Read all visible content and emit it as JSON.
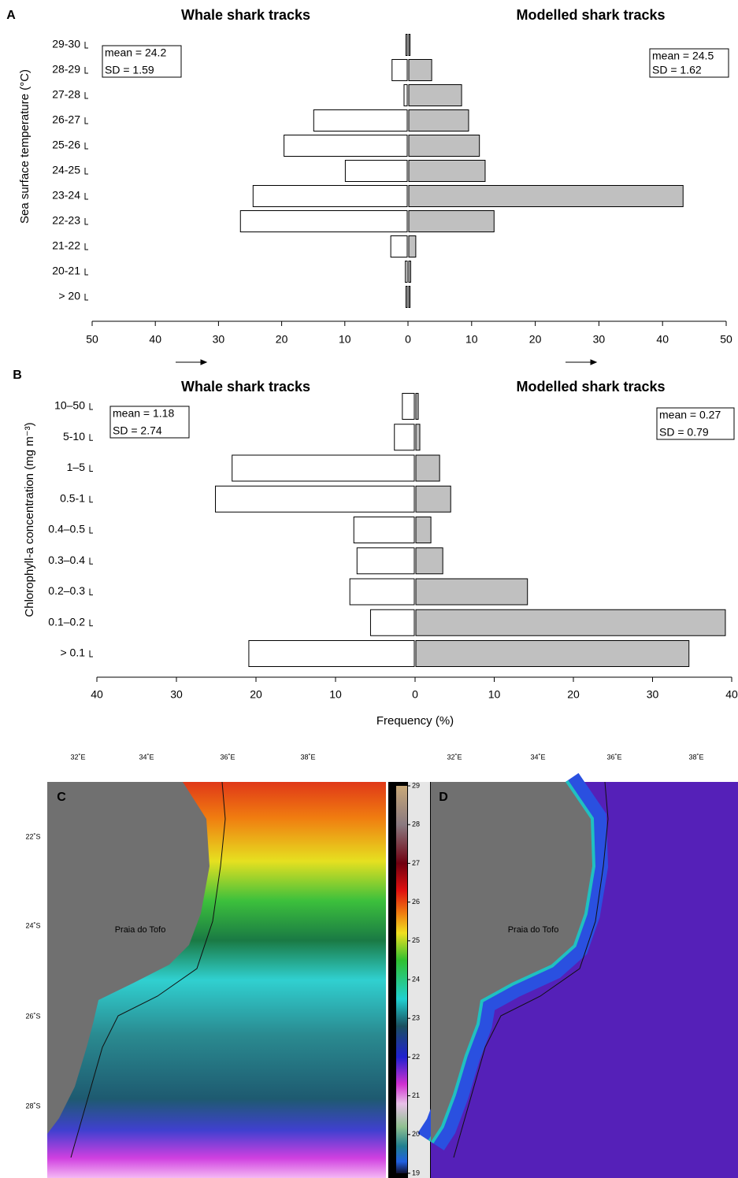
{
  "chart_data": [
    {
      "panel": "A",
      "type": "bar",
      "orientation": "horizontal",
      "y_label": "Sea surface temperature (°C)",
      "categories": [
        "29-30",
        "28-29",
        "27-28",
        "26-27",
        "25-26",
        "24-25",
        "23-24",
        "22-23",
        "21-22",
        "20-21",
        "> 20"
      ],
      "series": [
        {
          "name": "Whale shark tracks",
          "side": "left",
          "color": "#ffffff",
          "values": [
            0.2,
            2.4,
            0.5,
            14.8,
            19.5,
            9.8,
            24.4,
            26.4,
            2.6,
            0.3,
            0.2
          ],
          "stats": [
            "mean = 24.2",
            "SD = 1.59"
          ],
          "xlim": [
            0,
            50
          ],
          "xticks": [
            50,
            40,
            30,
            20,
            10,
            0
          ]
        },
        {
          "name": "Modelled shark tracks",
          "side": "right",
          "color": "#c0c0c0",
          "values": [
            0.2,
            3.6,
            8.3,
            9.4,
            11.1,
            12.0,
            43.1,
            13.4,
            1.1,
            0.3,
            0.2
          ],
          "stats": [
            "mean = 24.5",
            "SD = 1.62"
          ],
          "xlim": [
            0,
            50
          ],
          "xticks": [
            10,
            20,
            30,
            40,
            50
          ]
        }
      ]
    },
    {
      "panel": "B",
      "type": "bar",
      "orientation": "horizontal",
      "y_label": "Chlorophyll-a concentration (mg m⁻³)",
      "x_label": "Frequency (%)",
      "categories": [
        "10–50",
        "5-10",
        "1–5",
        "0.5-1",
        "0.4–0.5",
        "0.3–0.4",
        "0.2–0.3",
        "0.1–0.2",
        "> 0.1"
      ],
      "series": [
        {
          "name": "Whale shark tracks",
          "side": "left",
          "color": "#ffffff",
          "values": [
            1.5,
            2.5,
            22.9,
            25.0,
            7.6,
            7.2,
            8.1,
            5.5,
            20.8
          ],
          "stats": [
            "mean = 1.18",
            "SD = 2.74"
          ],
          "xlim": [
            0,
            40
          ],
          "xticks": [
            40,
            30,
            20,
            10,
            0
          ]
        },
        {
          "name": "Modelled shark tracks",
          "side": "right",
          "color": "#c0c0c0",
          "values": [
            0.3,
            0.5,
            3.0,
            4.4,
            1.9,
            3.4,
            14.1,
            39.1,
            34.5
          ],
          "stats": [
            "mean = 0.27",
            "SD = 0.79"
          ],
          "xlim": [
            0,
            40
          ],
          "xticks": [
            10,
            20,
            30,
            40
          ]
        }
      ]
    }
  ],
  "maps": [
    {
      "panel": "C",
      "lon_labels": [
        "32˚E",
        "34˚E",
        "36˚E",
        "38˚E"
      ],
      "lat_labels": [
        "22˚S",
        "24˚S",
        "26˚S",
        "28˚S"
      ],
      "place": "Praia do Tofo",
      "colorbar_ticks": [
        19,
        20,
        21,
        22,
        23,
        24,
        25,
        26,
        27,
        28,
        29
      ]
    },
    {
      "panel": "D",
      "lon_labels": [
        "32˚E",
        "34˚E",
        "36˚E",
        "38˚E"
      ],
      "place": "Praia do Tofo"
    }
  ]
}
